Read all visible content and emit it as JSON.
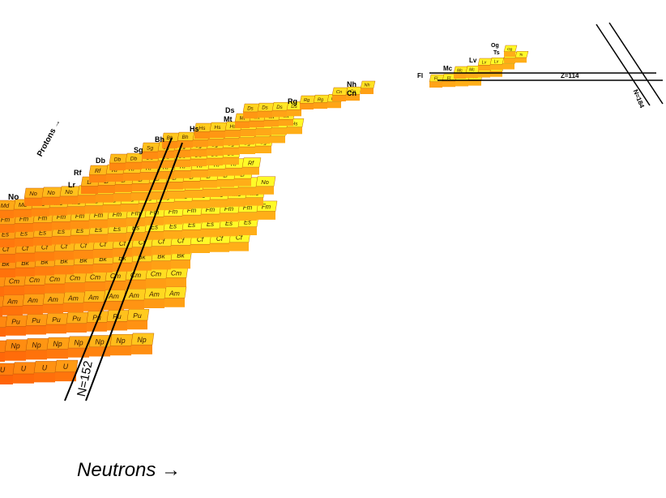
{
  "figure": {
    "x_axis_title": "Neutrons →",
    "y_axis_title": "Protons →",
    "magic_lines": [
      {
        "name": "neutron-closed-shell",
        "label": "N=152"
      },
      {
        "name": "proton-closed-shell",
        "label": "Z=114"
      },
      {
        "name": "neutron-closed-shell-far",
        "label": "N=184"
      }
    ],
    "element_labels": [
      "No",
      "Lr",
      "Rf",
      "Db",
      "Sg",
      "Bh",
      "Hs",
      "Mt",
      "Ds",
      "Rg",
      "Cn",
      "Nh",
      "Fl",
      "Mc",
      "Lv",
      "Ts",
      "Og"
    ],
    "row_elements": [
      "U",
      "Np",
      "Pu",
      "Am",
      "Cm",
      "Bk",
      "Cf",
      "Es",
      "Fm",
      "Md",
      "No",
      "Lr",
      "Rf",
      "Db",
      "Sg",
      "Bh",
      "Hs",
      "Mt",
      "Ds",
      "Rg",
      "Cn",
      "Nh",
      "Fl",
      "Mc",
      "Lv",
      "Ts",
      "Og"
    ],
    "colors": {
      "high": "#ff3300",
      "mid": "#ff8c1a",
      "low": "#ffee33",
      "line": "#000000"
    }
  }
}
